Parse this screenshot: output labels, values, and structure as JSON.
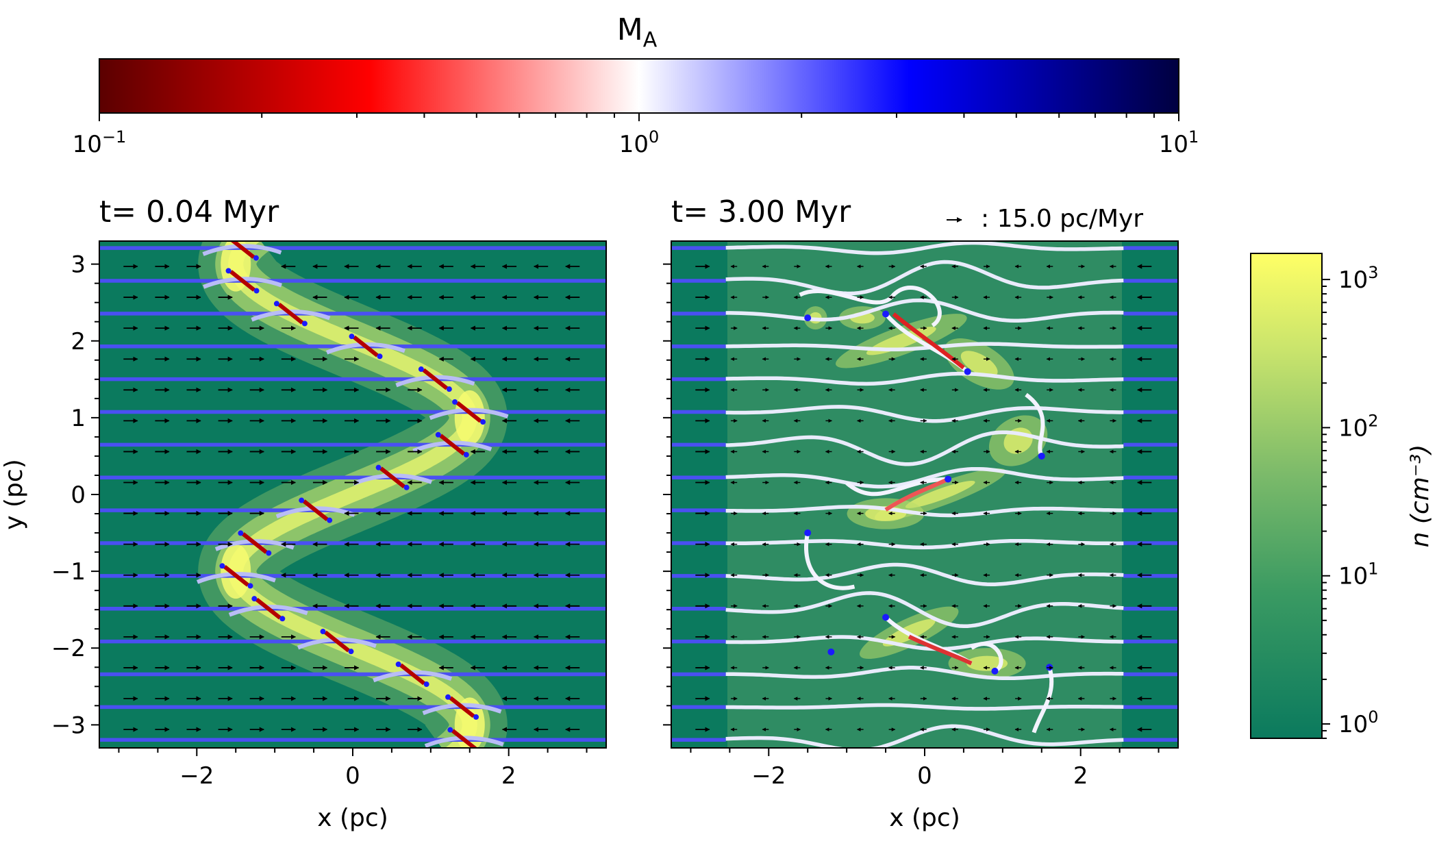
{
  "chart_data": [
    {
      "type": "colorbar",
      "title": "M",
      "title_subscript": "A",
      "scale": "log",
      "range": [
        0.1,
        10
      ],
      "tick_labels": [
        {
          "value": 0.1,
          "base": "10",
          "exp": "−1"
        },
        {
          "value": 1,
          "base": "10",
          "exp": "0"
        },
        {
          "value": 10,
          "base": "10",
          "exp": "1"
        }
      ],
      "colormap": [
        "#5b0000",
        "#ff0000",
        "#ffffff",
        "#0000ff",
        "#000040"
      ]
    },
    {
      "type": "streamplot",
      "title": "t= 0.04 Myr",
      "xlabel": "x (pc)",
      "ylabel": "y (pc)",
      "xlim": [
        -3.25,
        3.25
      ],
      "ylim": [
        -3.3,
        3.3
      ],
      "xticks": [
        {
          "value": -2,
          "label": "−2"
        },
        {
          "value": 0,
          "label": "0"
        },
        {
          "value": 2,
          "label": "2"
        }
      ],
      "yticks": [
        {
          "value": 3,
          "label": "3"
        },
        {
          "value": 2,
          "label": "2"
        },
        {
          "value": 1,
          "label": "1"
        },
        {
          "value": 0,
          "label": "0"
        },
        {
          "value": -1,
          "label": "−1"
        },
        {
          "value": -2,
          "label": "−2"
        },
        {
          "value": -3,
          "label": "−3"
        }
      ],
      "filament": {
        "amplitude_pc": 1.5,
        "wavelength_pc": 4.0
      },
      "background_density": 1
    },
    {
      "type": "streamplot",
      "title": "t= 3.00 Myr",
      "xlabel": "x (pc)",
      "xlim": [
        -3.25,
        3.25
      ],
      "ylim": [
        -3.3,
        3.3
      ],
      "xticks": [
        {
          "value": -2,
          "label": "−2"
        },
        {
          "value": 0,
          "label": "0"
        },
        {
          "value": 2,
          "label": "2"
        }
      ],
      "velocity_key": {
        "value": 15.0,
        "label": ": 15.0 pc/Myr"
      },
      "background_density": 1
    },
    {
      "type": "colorbar",
      "ylabel": "n (cm⁻³)",
      "scale": "log",
      "range": [
        0.8,
        1500
      ],
      "tick_labels": [
        {
          "value": 1000,
          "base": "10",
          "exp": "3"
        },
        {
          "value": 100,
          "base": "10",
          "exp": "2"
        },
        {
          "value": 10,
          "base": "10",
          "exp": "1"
        },
        {
          "value": 1,
          "base": "10",
          "exp": "0"
        }
      ],
      "colormap": [
        "#0b7a5e",
        "#3a9a62",
        "#7dbb6a",
        "#c9e46c",
        "#ffff66"
      ]
    }
  ]
}
